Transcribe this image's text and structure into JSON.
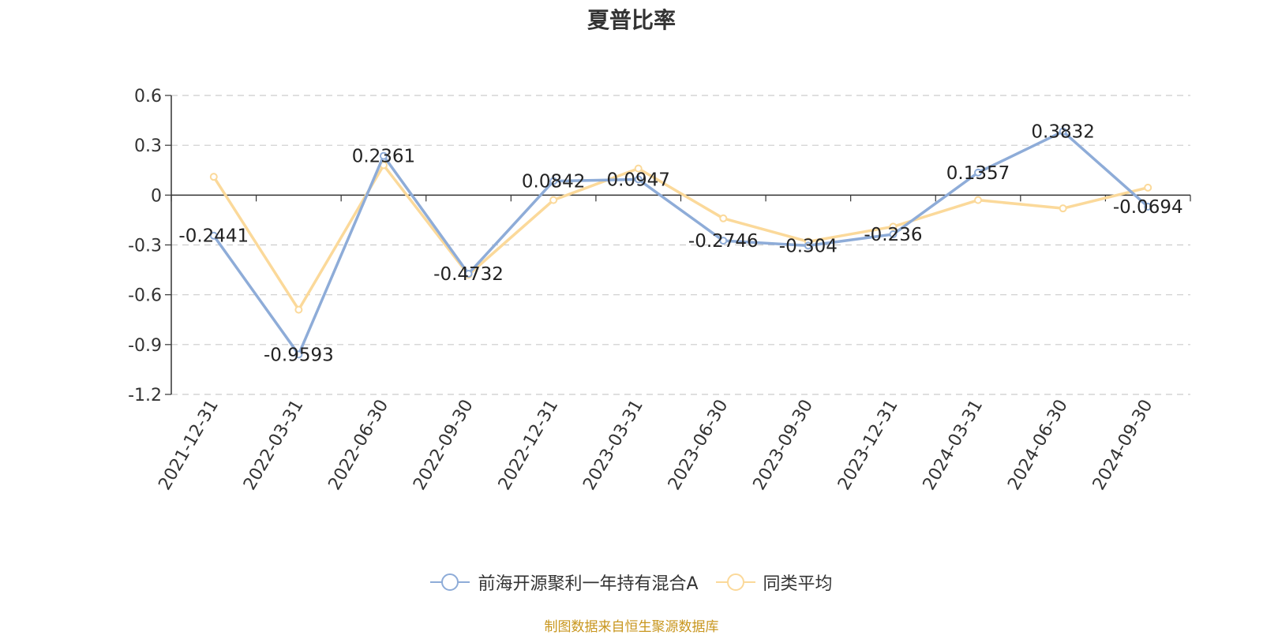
{
  "chart_data": {
    "type": "line",
    "title": "夏普比率",
    "categories": [
      "2021-12-31",
      "2022-03-31",
      "2022-06-30",
      "2022-09-30",
      "2022-12-31",
      "2023-03-31",
      "2023-06-30",
      "2023-09-30",
      "2023-12-31",
      "2024-03-31",
      "2024-06-30",
      "2024-09-30"
    ],
    "series": [
      {
        "name": "前海开源聚利一年持有混合A",
        "color": "#8eacd8",
        "values": [
          -0.2441,
          -0.9593,
          0.2361,
          -0.4732,
          0.0842,
          0.0947,
          -0.2746,
          -0.304,
          -0.236,
          0.1357,
          0.3832,
          -0.0694
        ],
        "labels": [
          "-0.2441",
          "-0.9593",
          "0.2361",
          "-0.4732",
          "0.0842",
          "0.0947",
          "-0.2746",
          "-0.304",
          "-0.236",
          "0.1357",
          "0.3832",
          "-0.0694"
        ]
      },
      {
        "name": "同类平均",
        "color": "#fbd99a",
        "values": [
          0.11,
          -0.69,
          0.18,
          -0.48,
          -0.03,
          0.16,
          -0.14,
          -0.28,
          -0.19,
          -0.03,
          -0.08,
          0.045
        ]
      }
    ],
    "yticks": [
      "0.6",
      "0.3",
      "0",
      "-0.3",
      "-0.6",
      "-0.9",
      "-1.2"
    ],
    "ylim": [
      -1.2,
      0.6
    ],
    "grid": true,
    "legend_position": "bottom-center"
  },
  "footer": "制图数据来自恒生聚源数据库"
}
